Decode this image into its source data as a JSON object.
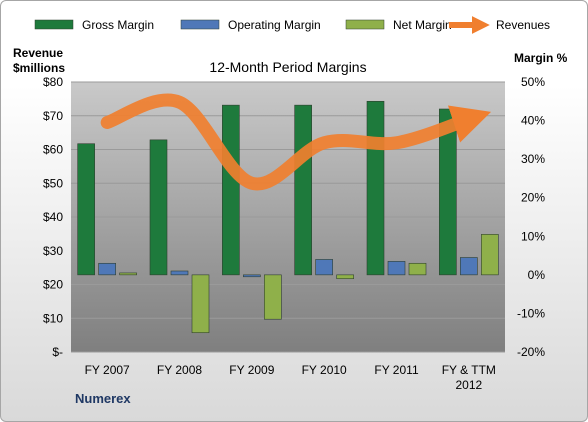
{
  "chart_data": {
    "type": "bar",
    "title": "12-Month Period Margins",
    "left_axis_title": [
      "Revenue",
      "$millions"
    ],
    "right_axis_title": "Margin %",
    "footer": "Numerex",
    "categories": [
      [
        "FY 2007"
      ],
      [
        "FY 2008"
      ],
      [
        "FY 2009"
      ],
      [
        "FY 2010"
      ],
      [
        "FY 2011"
      ],
      [
        "FY & TTM",
        "2012"
      ]
    ],
    "left_axis": {
      "min": 0,
      "max": 80,
      "step": 10,
      "labels": [
        "$-",
        "$10",
        "$20",
        "$30",
        "$40",
        "$50",
        "$60",
        "$70",
        "$80"
      ]
    },
    "right_axis": {
      "min": -20,
      "max": 50,
      "step": 10,
      "labels": [
        "-20%",
        "-10%",
        "0%",
        "10%",
        "20%",
        "30%",
        "40%",
        "50%"
      ]
    },
    "legend_position": "top",
    "series": [
      {
        "name": "Gross Margin",
        "kind": "bar",
        "axis": "right",
        "color": "#1e7a3c",
        "values": [
          34,
          35,
          44,
          44,
          45,
          43
        ]
      },
      {
        "name": "Operating Margin",
        "kind": "bar",
        "axis": "right",
        "color": "#4f78b8",
        "values": [
          3,
          1,
          -0.5,
          4,
          3.5,
          4.5
        ]
      },
      {
        "name": "Net Margin",
        "kind": "bar",
        "axis": "right",
        "color": "#8fb04a",
        "values": [
          0.5,
          -15,
          -11.5,
          -1,
          3,
          10.5
        ]
      },
      {
        "name": "Revenues",
        "kind": "line",
        "axis": "left",
        "color": "#f07f2f",
        "values": [
          68,
          74,
          50,
          62,
          62,
          69
        ]
      }
    ]
  }
}
